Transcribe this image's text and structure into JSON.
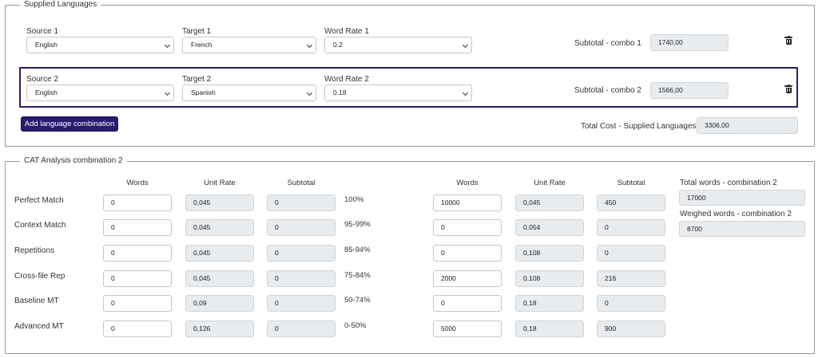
{
  "supplied": {
    "legend": "Supplied Languages",
    "combos": [
      {
        "source_label": "Source 1",
        "source_value": "English",
        "target_label": "Target 1",
        "target_value": "French",
        "rate_label": "Word Rate 1",
        "rate_value": "0.2",
        "subtotal_label": "Subtotal - combo 1",
        "subtotal_value": "1740,00"
      },
      {
        "source_label": "Source 2",
        "source_value": "English",
        "target_label": "Target 2",
        "target_value": "Spanish",
        "rate_label": "Word Rate 2",
        "rate_value": "0.18",
        "subtotal_label": "Subtotal - combo 2",
        "subtotal_value": "1566,00"
      }
    ],
    "add_button": "Add language combination",
    "total_label": "Total Cost - Supplied Languages",
    "total_value": "3306,00"
  },
  "cat": {
    "legend": "CAT Analysis combination 2",
    "headers": {
      "words": "Words",
      "unit_rate": "Unit Rate",
      "subtotal": "Subtotal"
    },
    "rows": [
      {
        "label": "Perfect Match",
        "words": "0",
        "rate": "0,045",
        "subtotal": "0",
        "pct": "100%",
        "r_words": "10000",
        "r_rate": "0,045",
        "r_subtotal": "450"
      },
      {
        "label": "Context Match",
        "words": "0",
        "rate": "0,045",
        "subtotal": "0",
        "pct": "95-99%",
        "r_words": "0",
        "r_rate": "0,054",
        "r_subtotal": "0"
      },
      {
        "label": "Repetitions",
        "words": "0",
        "rate": "0,045",
        "subtotal": "0",
        "pct": "85-94%",
        "r_words": "0",
        "r_rate": "0,108",
        "r_subtotal": "0"
      },
      {
        "label": "Cross-file Rep",
        "words": "0",
        "rate": "0,045",
        "subtotal": "0",
        "pct": "75-84%",
        "r_words": "2000",
        "r_rate": "0,108",
        "r_subtotal": "216"
      },
      {
        "label": "Baseline MT",
        "words": "0",
        "rate": "0,09",
        "subtotal": "0",
        "pct": "50-74%",
        "r_words": "0",
        "r_rate": "0,18",
        "r_subtotal": "0"
      },
      {
        "label": "Advanced MT",
        "words": "0",
        "rate": "0,126",
        "subtotal": "0",
        "pct": "0-50%",
        "r_words": "5000",
        "r_rate": "0,18",
        "r_subtotal": "900"
      }
    ],
    "total_words_label": "Total words - combination 2",
    "total_words_value": "17000",
    "weighed_words_label": "Weighed words - combination 2",
    "weighed_words_value": "8700"
  }
}
